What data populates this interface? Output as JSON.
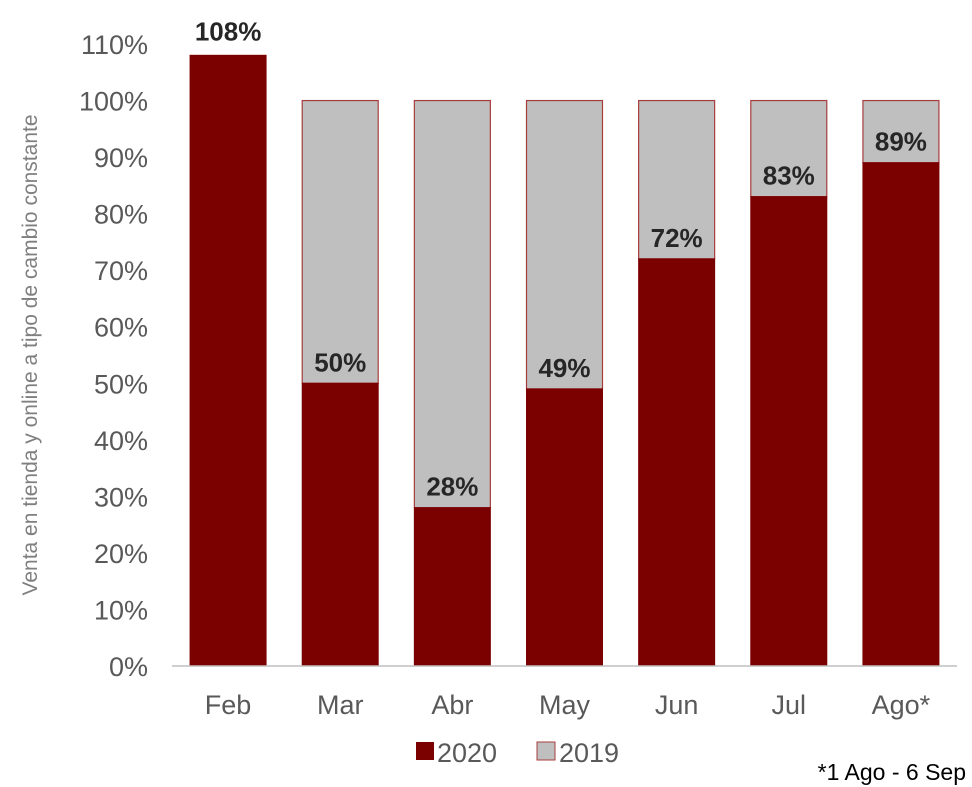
{
  "colors": {
    "series_2020": "#7b0000",
    "series_2019": "#bfbfbf",
    "bar_border": "#a63d3d",
    "axis": "#bfbfbf"
  },
  "chart_data": {
    "type": "bar",
    "stacked": true,
    "categories": [
      "Feb",
      "Mar",
      "Abr",
      "May",
      "Jun",
      "Jul",
      "Ago*"
    ],
    "series": [
      {
        "name": "2020",
        "values": [
          108,
          50,
          28,
          49,
          72,
          83,
          89
        ]
      },
      {
        "name": "2019",
        "values": [
          0,
          50,
          72,
          51,
          28,
          17,
          11
        ]
      }
    ],
    "data_labels": [
      "108%",
      "50%",
      "28%",
      "49%",
      "72%",
      "83%",
      "89%"
    ],
    "ylabel": "Venta en tienda y online a tipo de cambio constante",
    "xlabel": "",
    "ylim": [
      0,
      110
    ],
    "yticks": [
      "0%",
      "10%",
      "20%",
      "30%",
      "40%",
      "50%",
      "60%",
      "70%",
      "80%",
      "90%",
      "100%",
      "110%"
    ],
    "legend": {
      "placement": "bottom",
      "entries": [
        "2020",
        "2019"
      ]
    },
    "grid": false,
    "footnote": "*1 Ago - 6 Sep"
  }
}
